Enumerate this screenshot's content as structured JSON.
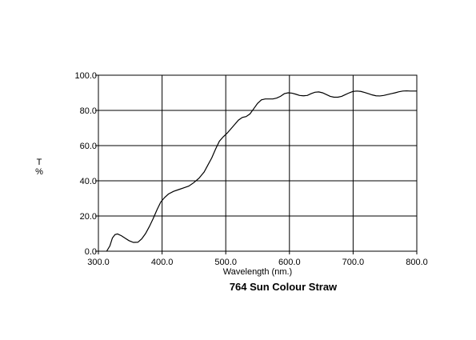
{
  "chart_data": {
    "type": "line",
    "title": "764 Sun Colour Straw",
    "xlabel": "Wavelength (nm.)",
    "ylabel_top": "T",
    "ylabel_bottom": "%",
    "xlim": [
      300,
      800
    ],
    "ylim": [
      0,
      100
    ],
    "x_ticks": [
      "300.0",
      "400.0",
      "500.0",
      "600.0",
      "700.0",
      "800.0"
    ],
    "y_ticks": [
      "0.0",
      "20.0",
      "40.0",
      "60.0",
      "80.0",
      "100.0"
    ],
    "x_tick_values": [
      300,
      400,
      500,
      600,
      700,
      800
    ],
    "y_tick_values": [
      0,
      20,
      40,
      60,
      80,
      100
    ],
    "grid": true,
    "line_color": "#000000",
    "series": [
      {
        "x": [
          313,
          318,
          322,
          326,
          330,
          336,
          342,
          348,
          355,
          362,
          368,
          374,
          380,
          386,
          392,
          398,
          404,
          410,
          418,
          426,
          434,
          442,
          450,
          458,
          466,
          472,
          478,
          484,
          490,
          496,
          502,
          508,
          514,
          520,
          526,
          532,
          538,
          544,
          550,
          556,
          562,
          568,
          574,
          580,
          586,
          592,
          598,
          604,
          610,
          616,
          622,
          628,
          634,
          640,
          646,
          652,
          658,
          664,
          670,
          676,
          682,
          688,
          694,
          700,
          706,
          712,
          718,
          724,
          730,
          736,
          742,
          748,
          754,
          760,
          766,
          772,
          778,
          784,
          790,
          796,
          800
        ],
        "y": [
          0.0,
          3.0,
          7.5,
          9.4,
          9.8,
          8.8,
          7.4,
          6.0,
          5.0,
          5.1,
          7.0,
          10.0,
          14.0,
          18.5,
          23.5,
          28.0,
          30.5,
          32.5,
          34.0,
          35.0,
          36.0,
          37.0,
          39.0,
          41.5,
          45.0,
          49.0,
          53.0,
          58.0,
          62.5,
          65.0,
          67.0,
          69.5,
          72.0,
          74.5,
          76.0,
          76.5,
          78.0,
          81.0,
          84.0,
          86.0,
          86.5,
          86.5,
          86.5,
          87.0,
          88.0,
          89.5,
          90.0,
          89.8,
          89.2,
          88.5,
          88.3,
          88.5,
          89.5,
          90.3,
          90.5,
          90.0,
          89.0,
          88.0,
          87.5,
          87.5,
          88.0,
          89.0,
          90.0,
          90.8,
          91.0,
          90.8,
          90.2,
          89.5,
          88.8,
          88.3,
          88.2,
          88.5,
          89.0,
          89.5,
          90.0,
          90.6,
          91.0,
          91.1,
          91.0,
          91.0,
          91.0
        ]
      }
    ]
  }
}
